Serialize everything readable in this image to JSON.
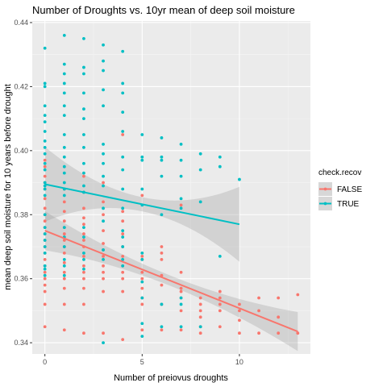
{
  "chart_data": {
    "type": "scatter",
    "title": "Number of Droughts vs. 10yr mean of deep soil moisture",
    "xlabel": "Number of preiovus droughts",
    "ylabel": "mean deep soil moisture for 10 years before drought",
    "xlim": [
      -0.65,
      13.65
    ],
    "ylim": [
      0.3365,
      0.4405
    ],
    "x_ticks": [
      0,
      5,
      10
    ],
    "y_ticks": [
      0.34,
      0.36,
      0.38,
      0.4,
      0.42,
      0.44
    ],
    "y_tick_labels": [
      "0.34",
      "0.36",
      "0.38",
      "0.40",
      "0.42",
      "0.44"
    ],
    "grid": true,
    "legend": {
      "title": "check.recov",
      "position": "right"
    },
    "series": [
      {
        "name": "FALSE",
        "color": "#F8766D",
        "points": [
          [
            0,
            0.345
          ],
          [
            0,
            0.352
          ],
          [
            0,
            0.356
          ],
          [
            0,
            0.358
          ],
          [
            0,
            0.36
          ],
          [
            0,
            0.362
          ],
          [
            0,
            0.364
          ],
          [
            0,
            0.366
          ],
          [
            0,
            0.368
          ],
          [
            0,
            0.37
          ],
          [
            0,
            0.372
          ],
          [
            0,
            0.374
          ],
          [
            0,
            0.376
          ],
          [
            0,
            0.378
          ],
          [
            0,
            0.38
          ],
          [
            0,
            0.382
          ],
          [
            0,
            0.385
          ],
          [
            0,
            0.388
          ],
          [
            0,
            0.39
          ],
          [
            0,
            0.392
          ],
          [
            0,
            0.395
          ],
          [
            0,
            0.397
          ],
          [
            1,
            0.344
          ],
          [
            1,
            0.352
          ],
          [
            1,
            0.357
          ],
          [
            1,
            0.36
          ],
          [
            1,
            0.362
          ],
          [
            1,
            0.365
          ],
          [
            1,
            0.368
          ],
          [
            1,
            0.37
          ],
          [
            1,
            0.372
          ],
          [
            1,
            0.374
          ],
          [
            1,
            0.376
          ],
          [
            1,
            0.378
          ],
          [
            1,
            0.381
          ],
          [
            1,
            0.384
          ],
          [
            1,
            0.388
          ],
          [
            2,
            0.343
          ],
          [
            2,
            0.352
          ],
          [
            2,
            0.357
          ],
          [
            2,
            0.36
          ],
          [
            2,
            0.362
          ],
          [
            2,
            0.364
          ],
          [
            2,
            0.367
          ],
          [
            2,
            0.37
          ],
          [
            2,
            0.372
          ],
          [
            2,
            0.374
          ],
          [
            2,
            0.377
          ],
          [
            2,
            0.379
          ],
          [
            2,
            0.382
          ],
          [
            2,
            0.387
          ],
          [
            2,
            0.392
          ],
          [
            3,
            0.343
          ],
          [
            3,
            0.356
          ],
          [
            3,
            0.36
          ],
          [
            3,
            0.362
          ],
          [
            3,
            0.364
          ],
          [
            3,
            0.367
          ],
          [
            3,
            0.369
          ],
          [
            3,
            0.371
          ],
          [
            3,
            0.375
          ],
          [
            3,
            0.38
          ],
          [
            3,
            0.384
          ],
          [
            3,
            0.39
          ],
          [
            4,
            0.341
          ],
          [
            4,
            0.356
          ],
          [
            4,
            0.36
          ],
          [
            4,
            0.362
          ],
          [
            4,
            0.364
          ],
          [
            4,
            0.367
          ],
          [
            4,
            0.37
          ],
          [
            4,
            0.374
          ],
          [
            4,
            0.378
          ],
          [
            4,
            0.381
          ],
          [
            4,
            0.405
          ],
          [
            5,
            0.344
          ],
          [
            5,
            0.352
          ],
          [
            5,
            0.354
          ],
          [
            5,
            0.357
          ],
          [
            5,
            0.36
          ],
          [
            5,
            0.362
          ],
          [
            5,
            0.366
          ],
          [
            5,
            0.367
          ],
          [
            5,
            0.386
          ],
          [
            6,
            0.344
          ],
          [
            6,
            0.352
          ],
          [
            6,
            0.358
          ],
          [
            6,
            0.361
          ],
          [
            6,
            0.366
          ],
          [
            6,
            0.368
          ],
          [
            6,
            0.37
          ],
          [
            7,
            0.344
          ],
          [
            7,
            0.35
          ],
          [
            7,
            0.354
          ],
          [
            7,
            0.356
          ],
          [
            7,
            0.357
          ],
          [
            7,
            0.362
          ],
          [
            7,
            0.383
          ],
          [
            8,
            0.343
          ],
          [
            8,
            0.345
          ],
          [
            8,
            0.348
          ],
          [
            8,
            0.35
          ],
          [
            8,
            0.352
          ],
          [
            8,
            0.354
          ],
          [
            9,
            0.345
          ],
          [
            9,
            0.35
          ],
          [
            9,
            0.352
          ],
          [
            9,
            0.354
          ],
          [
            9,
            0.356
          ],
          [
            10,
            0.343
          ],
          [
            10,
            0.347
          ],
          [
            10,
            0.35
          ],
          [
            10,
            0.352
          ],
          [
            11,
            0.343
          ],
          [
            11,
            0.35
          ],
          [
            11,
            0.354
          ],
          [
            12,
            0.343
          ],
          [
            12,
            0.348
          ],
          [
            12,
            0.354
          ],
          [
            13,
            0.343
          ],
          [
            13,
            0.355
          ]
        ],
        "fit": {
          "x": [
            0,
            13
          ],
          "y": [
            0.375,
            0.3435
          ]
        }
      },
      {
        "name": "TRUE",
        "color": "#00BFC4",
        "points": [
          [
            0,
            0.432
          ],
          [
            0,
            0.421
          ],
          [
            0,
            0.42
          ],
          [
            0,
            0.414
          ],
          [
            0,
            0.411
          ],
          [
            0,
            0.409
          ],
          [
            0,
            0.406
          ],
          [
            0,
            0.403
          ],
          [
            0,
            0.401
          ],
          [
            0,
            0.399
          ],
          [
            0,
            0.396
          ],
          [
            0,
            0.394
          ],
          [
            0,
            0.39
          ],
          [
            0,
            0.389
          ],
          [
            0,
            0.388
          ],
          [
            0,
            0.386
          ],
          [
            0,
            0.38
          ],
          [
            0,
            0.376
          ],
          [
            0,
            0.374
          ],
          [
            0,
            0.372
          ],
          [
            0,
            0.37
          ],
          [
            0,
            0.368
          ],
          [
            0,
            0.364
          ],
          [
            0,
            0.363
          ],
          [
            0,
            0.361
          ],
          [
            1,
            0.436
          ],
          [
            1,
            0.427
          ],
          [
            1,
            0.424
          ],
          [
            1,
            0.421
          ],
          [
            1,
            0.418
          ],
          [
            1,
            0.414
          ],
          [
            1,
            0.411
          ],
          [
            1,
            0.405
          ],
          [
            1,
            0.401
          ],
          [
            1,
            0.398
          ],
          [
            1,
            0.395
          ],
          [
            1,
            0.393
          ],
          [
            1,
            0.39
          ],
          [
            1,
            0.388
          ],
          [
            1,
            0.386
          ],
          [
            1,
            0.376
          ],
          [
            1,
            0.373
          ],
          [
            1,
            0.37
          ],
          [
            1,
            0.366
          ],
          [
            1,
            0.364
          ],
          [
            1,
            0.361
          ],
          [
            2,
            0.435
          ],
          [
            2,
            0.426
          ],
          [
            2,
            0.424
          ],
          [
            2,
            0.418
          ],
          [
            2,
            0.413
          ],
          [
            2,
            0.41
          ],
          [
            2,
            0.405
          ],
          [
            2,
            0.401
          ],
          [
            2,
            0.396
          ],
          [
            2,
            0.393
          ],
          [
            2,
            0.389
          ],
          [
            2,
            0.387
          ],
          [
            2,
            0.376
          ],
          [
            2,
            0.373
          ],
          [
            2,
            0.368
          ],
          [
            2,
            0.366
          ],
          [
            2,
            0.363
          ],
          [
            3,
            0.433
          ],
          [
            3,
            0.428
          ],
          [
            3,
            0.425
          ],
          [
            3,
            0.419
          ],
          [
            3,
            0.414
          ],
          [
            3,
            0.402
          ],
          [
            3,
            0.399
          ],
          [
            3,
            0.396
          ],
          [
            3,
            0.392
          ],
          [
            3,
            0.389
          ],
          [
            3,
            0.382
          ],
          [
            3,
            0.378
          ],
          [
            3,
            0.369
          ],
          [
            3,
            0.366
          ],
          [
            3,
            0.34
          ],
          [
            4,
            0.431
          ],
          [
            4,
            0.421
          ],
          [
            4,
            0.418
          ],
          [
            4,
            0.412
          ],
          [
            4,
            0.406
          ],
          [
            4,
            0.398
          ],
          [
            4,
            0.394
          ],
          [
            4,
            0.388
          ],
          [
            4,
            0.382
          ],
          [
            4,
            0.375
          ],
          [
            4,
            0.373
          ],
          [
            4,
            0.37
          ],
          [
            4,
            0.366
          ],
          [
            4,
            0.364
          ],
          [
            5,
            0.405
          ],
          [
            5,
            0.398
          ],
          [
            5,
            0.397
          ],
          [
            5,
            0.388
          ],
          [
            5,
            0.383
          ],
          [
            5,
            0.368
          ],
          [
            5,
            0.366
          ],
          [
            5,
            0.359
          ],
          [
            5,
            0.354
          ],
          [
            5,
            0.346
          ],
          [
            5,
            0.342
          ],
          [
            6,
            0.404
          ],
          [
            6,
            0.398
          ],
          [
            6,
            0.397
          ],
          [
            6,
            0.392
          ],
          [
            6,
            0.38
          ],
          [
            6,
            0.352
          ],
          [
            6,
            0.345
          ],
          [
            7,
            0.402
          ],
          [
            7,
            0.397
          ],
          [
            7,
            0.392
          ],
          [
            7,
            0.385
          ],
          [
            7,
            0.382
          ],
          [
            7,
            0.354
          ],
          [
            7,
            0.352
          ],
          [
            7,
            0.345
          ],
          [
            8,
            0.399
          ],
          [
            8,
            0.394
          ],
          [
            8,
            0.384
          ],
          [
            8,
            0.345
          ],
          [
            9,
            0.398
          ],
          [
            9,
            0.395
          ],
          [
            9,
            0.367
          ],
          [
            10,
            0.391
          ]
        ],
        "fit": {
          "x": [
            0,
            10
          ],
          "y": [
            0.3895,
            0.377
          ]
        }
      }
    ]
  }
}
